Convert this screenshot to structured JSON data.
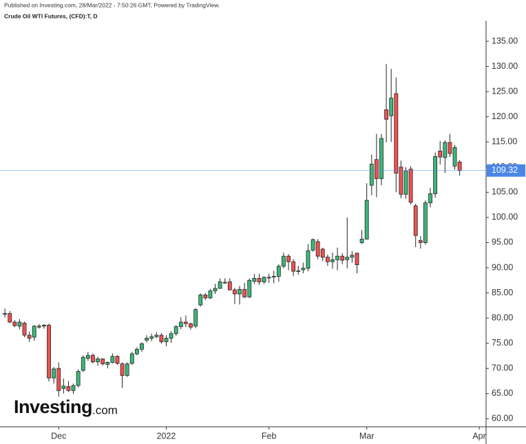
{
  "header": {
    "published": "Published on Investing.com, 28/Mar/2022 - 7:50:26 GMT, Powered by TradingView."
  },
  "watermark": {
    "brand": "Investing",
    "suffix": ".com"
  },
  "chart_data": {
    "type": "candlestick",
    "title": "Crude Oil WTI Futures, (CFD):T, D",
    "up_color": "#3cb878",
    "down_color": "#ef5350",
    "price_line_color": "#4a86e8",
    "open": [
      80.8,
      80.9,
      79.2,
      78.4,
      79.0,
      76.6,
      76.2,
      78.4,
      78.4,
      78.6,
      68.1,
      70.0,
      66.0,
      66.4,
      65.6,
      66.6,
      69.6,
      72.0,
      72.6,
      71.3,
      71.9,
      70.8,
      71.2,
      72.4,
      70.9,
      68.6,
      71.0,
      72.9,
      73.8,
      75.6,
      76.0,
      76.3,
      76.6,
      75.3,
      76.0,
      76.9,
      78.3,
      79.2,
      78.9,
      78.4,
      82.6,
      84.6,
      84.0,
      85.4,
      85.9,
      87.0,
      87.2,
      85.6,
      84.8,
      85.7,
      84.2,
      87.3,
      87.9,
      87.2,
      88.1,
      88.2,
      88.3,
      90.3,
      92.3,
      91.2,
      89.4,
      89.6,
      89.9,
      93.5,
      95.2,
      93.7,
      92.1,
      91.2,
      91.6,
      92.3,
      91.6,
      92.1,
      92.9,
      95.0,
      95.7,
      106.4,
      111.5,
      107.7,
      121.4,
      120.2,
      124.6,
      110.0,
      104.6,
      109.6,
      102.3,
      95.4,
      95.0,
      102.9,
      104.7,
      113.2,
      111.9,
      114.9,
      110.2,
      111.0
    ],
    "high": [
      81.9,
      81.4,
      79.6,
      79.8,
      79.3,
      77.3,
      78.6,
      78.8,
      78.8,
      78.9,
      70.3,
      71.2,
      68.0,
      67.5,
      67.0,
      69.8,
      72.6,
      73.3,
      73.0,
      72.3,
      72.0,
      71.4,
      73.0,
      72.6,
      71.2,
      71.2,
      73.3,
      74.2,
      75.2,
      76.6,
      76.9,
      77.2,
      77.0,
      76.6,
      77.4,
      78.6,
      80.2,
      80.5,
      79.1,
      82.0,
      84.9,
      85.0,
      85.8,
      86.8,
      87.9,
      87.9,
      87.9,
      86.0,
      86.4,
      87.0,
      87.9,
      88.8,
      88.8,
      88.3,
      88.8,
      89.4,
      90.7,
      93.0,
      92.7,
      91.7,
      90.4,
      91.0,
      94.7,
      95.8,
      95.7,
      94.0,
      92.6,
      93.0,
      94.0,
      92.9,
      100.0,
      93.3,
      93.0,
      97.5,
      106.8,
      112.5,
      116.6,
      116.6,
      130.5,
      129.5,
      127.8,
      111.3,
      110.0,
      110.2,
      102.7,
      96.3,
      103.4,
      105.9,
      112.9,
      115.2,
      115.3,
      116.6,
      114.4,
      111.4
    ],
    "low": [
      80.1,
      79.0,
      78.2,
      77.8,
      76.2,
      75.3,
      75.5,
      77.9,
      77.9,
      67.4,
      67.0,
      64.4,
      65.0,
      65.3,
      64.9,
      66.2,
      69.3,
      71.5,
      71.0,
      70.5,
      70.6,
      70.0,
      71.0,
      70.7,
      66.1,
      68.3,
      70.7,
      72.6,
      73.3,
      75.2,
      75.4,
      76.0,
      74.9,
      74.4,
      75.1,
      76.5,
      77.8,
      78.2,
      77.7,
      78.0,
      82.3,
      83.6,
      83.8,
      84.8,
      85.8,
      86.8,
      85.5,
      82.8,
      82.7,
      84.0,
      84.0,
      86.8,
      86.6,
      86.8,
      87.0,
      86.9,
      87.2,
      89.9,
      89.5,
      88.4,
      88.6,
      88.9,
      89.3,
      93.2,
      91.7,
      91.3,
      90.4,
      89.8,
      89.5,
      90.7,
      89.9,
      91.0,
      88.9,
      94.7,
      95.6,
      104.4,
      104.0,
      106.4,
      114.9,
      115.0,
      105.0,
      103.8,
      103.7,
      102.6,
      94.1,
      93.8,
      94.6,
      102.0,
      103.9,
      110.5,
      108.8,
      112.0,
      109.5,
      108.3
    ],
    "close": [
      80.9,
      79.2,
      78.5,
      79.2,
      76.6,
      76.0,
      78.4,
      78.2,
      78.6,
      68.1,
      69.9,
      65.6,
      66.5,
      65.6,
      66.6,
      69.4,
      72.2,
      72.6,
      71.3,
      71.9,
      70.9,
      71.2,
      72.4,
      71.0,
      68.6,
      70.9,
      72.9,
      73.8,
      74.9,
      76.0,
      76.3,
      76.6,
      75.3,
      76.0,
      76.9,
      78.3,
      79.2,
      78.9,
      78.2,
      81.7,
      84.6,
      84.0,
      85.4,
      85.9,
      87.2,
      87.1,
      85.6,
      84.8,
      85.7,
      84.2,
      87.5,
      87.9,
      87.2,
      88.1,
      88.1,
      88.3,
      90.3,
      92.3,
      91.2,
      89.3,
      89.4,
      89.9,
      93.4,
      95.6,
      92.3,
      92.1,
      91.2,
      91.6,
      92.3,
      91.5,
      92.1,
      92.5,
      90.6,
      95.7,
      103.4,
      110.6,
      107.7,
      115.7,
      119.5,
      123.7,
      108.8,
      104.6,
      109.3,
      103.0,
      96.4,
      95.0,
      102.9,
      104.7,
      112.1,
      112.0,
      114.9,
      112.7,
      113.9,
      109.32
    ],
    "xlim": [
      -1,
      98.4
    ],
    "xticks": [
      {
        "value": 11,
        "label": "Dec"
      },
      {
        "value": 33,
        "label": "2022"
      },
      {
        "value": 54,
        "label": "Feb"
      },
      {
        "value": 74,
        "label": "Mar"
      },
      {
        "value": 97,
        "label": "Apr"
      }
    ],
    "ylim": [
      58.4,
      139.1
    ],
    "yticks": [
      {
        "value": 60,
        "label": "60.00"
      },
      {
        "value": 65,
        "label": "65.00"
      },
      {
        "value": 70,
        "label": "70.00"
      },
      {
        "value": 75,
        "label": "75.00"
      },
      {
        "value": 80,
        "label": "80.00"
      },
      {
        "value": 85,
        "label": "85.00"
      },
      {
        "value": 90,
        "label": "90.00"
      },
      {
        "value": 95,
        "label": "95.00"
      },
      {
        "value": 100,
        "label": "100.00"
      },
      {
        "value": 105,
        "label": "105.00"
      },
      {
        "value": 110,
        "label": "110.00"
      },
      {
        "value": 115,
        "label": "115.00"
      },
      {
        "value": 120,
        "label": "120.00"
      },
      {
        "value": 125,
        "label": "125.00"
      },
      {
        "value": 130,
        "label": "130.00"
      },
      {
        "value": 135,
        "label": "135.00"
      }
    ]
  }
}
